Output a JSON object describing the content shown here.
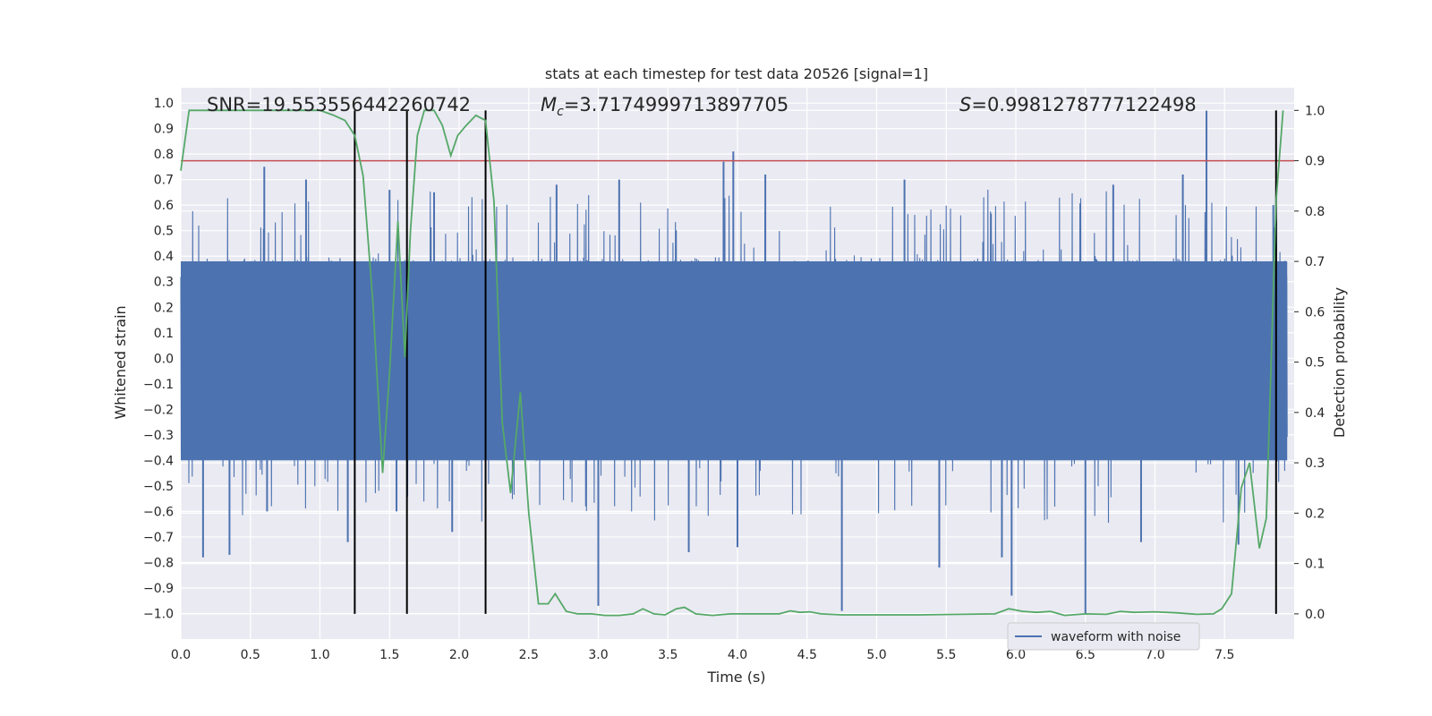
{
  "chart_data": {
    "type": "line",
    "title": "stats at each timestep for test data 20526 [signal=1]",
    "xlabel": "Time (s)",
    "ylabel": "Whitened strain",
    "ylabel_right": "Detection probability",
    "xlim": [
      0.0,
      8.0
    ],
    "ylim": [
      -1.1,
      1.06
    ],
    "ylim_right": [
      -0.05,
      1.045
    ],
    "x_ticks": [
      "0.0",
      "0.5",
      "1.0",
      "1.5",
      "2.0",
      "2.5",
      "3.0",
      "3.5",
      "4.0",
      "4.5",
      "5.0",
      "5.5",
      "6.0",
      "6.5",
      "7.0",
      "7.5"
    ],
    "y_ticks": [
      "1.0",
      "0.9",
      "0.8",
      "0.7",
      "0.6",
      "0.5",
      "0.4",
      "0.3",
      "0.2",
      "0.1",
      "0.0",
      "-0.1",
      "-0.2",
      "-0.3",
      "-0.4",
      "-0.5",
      "-0.6",
      "-0.7",
      "-0.8",
      "-0.9",
      "-1.0"
    ],
    "y_ticks_right": [
      "1.0",
      "0.9",
      "0.8",
      "0.7",
      "0.6",
      "0.5",
      "0.4",
      "0.3",
      "0.2",
      "0.1",
      "0.0"
    ],
    "annotations": {
      "snr": "SNR=19.553556442260742",
      "mc_symbol": "M",
      "mc_sub": "c",
      "mc_value": "=3.7174999713897705",
      "s_symbol": "S",
      "s_value": "=0.9981278777122498"
    },
    "legend": {
      "label": "waveform with noise",
      "location": "lower-right"
    },
    "threshold": {
      "value": 0.9,
      "axis": "right",
      "color": "#c44e52"
    },
    "vlines": [
      1.25,
      1.625,
      2.19,
      7.87
    ],
    "waveform": {
      "name": "waveform with noise",
      "color": "#4c72b0",
      "envelope": 0.38,
      "peaks": [
        [
          0.6,
          0.75
        ],
        [
          0.62,
          -0.6
        ],
        [
          0.16,
          -0.78
        ],
        [
          0.35,
          -0.77
        ],
        [
          1.2,
          -0.72
        ],
        [
          0.9,
          0.7
        ],
        [
          1.5,
          0.66
        ],
        [
          1.55,
          -0.6
        ],
        [
          1.82,
          0.65
        ],
        [
          1.95,
          -0.68
        ],
        [
          3.0,
          -0.97
        ],
        [
          3.15,
          0.7
        ],
        [
          3.65,
          -0.76
        ],
        [
          3.9,
          0.77
        ],
        [
          3.97,
          0.81
        ],
        [
          4.2,
          0.72
        ],
        [
          4.75,
          -0.99
        ],
        [
          5.45,
          -0.82
        ],
        [
          5.9,
          -0.78
        ],
        [
          5.97,
          -0.93
        ],
        [
          6.5,
          -1.0
        ],
        [
          6.7,
          0.68
        ],
        [
          7.2,
          0.72
        ],
        [
          7.37,
          0.97
        ],
        [
          7.6,
          -0.73
        ],
        [
          7.85,
          0.6
        ],
        [
          2.7,
          0.68
        ],
        [
          5.2,
          0.7
        ],
        [
          6.9,
          -0.72
        ],
        [
          4.0,
          -0.74
        ]
      ]
    },
    "detection_probability": {
      "color": "#55a868",
      "x": [
        0.0,
        0.06,
        0.2,
        0.4,
        0.6,
        0.8,
        1.0,
        1.1,
        1.18,
        1.25,
        1.31,
        1.38,
        1.45,
        1.5,
        1.56,
        1.61,
        1.65,
        1.7,
        1.75,
        1.82,
        1.88,
        1.94,
        1.99,
        2.05,
        2.12,
        2.19,
        2.25,
        2.31,
        2.37,
        2.44,
        2.5,
        2.57,
        2.64,
        2.69,
        2.77,
        2.85,
        2.95,
        3.05,
        3.15,
        3.25,
        3.32,
        3.4,
        3.48,
        3.56,
        3.62,
        3.7,
        3.82,
        3.95,
        4.1,
        4.3,
        4.38,
        4.45,
        4.52,
        4.6,
        4.75,
        5.0,
        5.3,
        5.6,
        5.85,
        5.95,
        6.05,
        6.15,
        6.25,
        6.35,
        6.5,
        6.65,
        6.75,
        6.85,
        7.0,
        7.15,
        7.3,
        7.42,
        7.48,
        7.55,
        7.62,
        7.68,
        7.75,
        7.8,
        7.87,
        7.92
      ],
      "y": [
        0.88,
        1.0,
        1.0,
        1.0,
        1.0,
        1.0,
        1.0,
        0.99,
        0.98,
        0.95,
        0.87,
        0.62,
        0.28,
        0.48,
        0.78,
        0.51,
        0.76,
        0.95,
        1.0,
        1.0,
        0.97,
        0.91,
        0.95,
        0.97,
        0.99,
        0.98,
        0.82,
        0.38,
        0.24,
        0.44,
        0.2,
        0.02,
        0.02,
        0.04,
        0.005,
        0.0,
        0.0,
        -0.003,
        -0.003,
        0.0,
        0.01,
        0.0,
        -0.002,
        0.01,
        0.013,
        0.0,
        -0.003,
        0.0,
        0.0,
        0.0,
        0.006,
        0.003,
        0.004,
        0.0,
        -0.002,
        -0.002,
        -0.002,
        -0.001,
        0.0,
        0.01,
        0.005,
        0.003,
        0.005,
        -0.003,
        0.0,
        -0.001,
        0.005,
        0.003,
        0.004,
        0.002,
        -0.001,
        0.0,
        0.01,
        0.04,
        0.25,
        0.3,
        0.13,
        0.19,
        0.82,
        1.0
      ]
    }
  }
}
